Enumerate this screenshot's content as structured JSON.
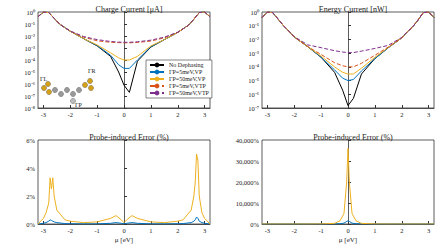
{
  "chart_data": [
    {
      "type": "line",
      "title": "Charge Current [μA]",
      "log": "y",
      "grid": false,
      "legend": "lower right",
      "annotations": [
        "ΓL",
        "ΓR",
        "ΓP"
      ],
      "xlim": [
        -3.2,
        3.2
      ],
      "xticks": [
        -3,
        -2,
        -1,
        0,
        1,
        2,
        3
      ],
      "ylim": [
        1e-08,
        1
      ],
      "yticks": [
        {
          "value": 1e-08,
          "label": "10⁻⁸"
        },
        {
          "value": 1e-07,
          "label": "10⁻⁷"
        },
        {
          "value": 1e-06,
          "label": "10⁻⁶"
        },
        {
          "value": 1e-05,
          "label": "10⁻⁵"
        },
        {
          "value": 0.0001,
          "label": "10⁻⁴"
        },
        {
          "value": 0.001,
          "label": "10⁻³"
        },
        {
          "value": 0.01,
          "label": "10⁻²"
        },
        {
          "value": 0.1,
          "label": "10⁻¹"
        },
        {
          "value": 1,
          "label": "10⁰"
        }
      ],
      "x": [
        -3.2,
        -3.0,
        -2.8,
        -2.6,
        -2.4,
        -2.2,
        -2.0,
        -1.5,
        -1.0,
        -0.5,
        -0.2,
        0,
        0.2,
        0.5,
        1.0,
        1.5,
        2.0,
        2.2,
        2.4,
        2.6,
        2.8,
        3.0,
        3.2
      ],
      "series": [
        {
          "name": "No Dephasing",
          "color": "#000000",
          "line_style": "solid",
          "values": [
            0.4,
            1.0,
            0.9,
            0.3,
            0.1,
            0.05,
            0.025,
            0.006,
            0.0015,
            0.0002,
            1e-05,
            8e-07,
            2e-07,
            8e-05,
            0.0012,
            0.005,
            0.02,
            0.04,
            0.08,
            0.25,
            0.9,
            1.0,
            0.4
          ]
        },
        {
          "name": "ΓP=5meV,VP",
          "color": "#0072BD",
          "line_style": "solid",
          "values": [
            0.4,
            1.0,
            0.9,
            0.3,
            0.1,
            0.05,
            0.025,
            0.006,
            0.0016,
            0.00025,
            4e-05,
            2e-05,
            2e-05,
            0.0001,
            0.0013,
            0.005,
            0.02,
            0.04,
            0.08,
            0.25,
            0.9,
            1.0,
            0.4
          ]
        },
        {
          "name": "ΓP=50meV,VP",
          "color": "#EDB120",
          "line_style": "solid",
          "values": [
            0.4,
            1.0,
            0.9,
            0.3,
            0.1,
            0.05,
            0.025,
            0.006,
            0.0018,
            0.0004,
            0.00015,
            0.0001,
            0.0001,
            0.0002,
            0.0015,
            0.005,
            0.02,
            0.04,
            0.08,
            0.25,
            0.9,
            1.0,
            0.4
          ]
        },
        {
          "name": "ΓP=5meV,VTP",
          "color": "#D95319",
          "line_style": "dashed",
          "values": [
            0.4,
            1.0,
            0.9,
            0.3,
            0.1,
            0.05,
            0.025,
            0.008,
            0.004,
            0.003,
            0.0028,
            0.0027,
            0.0027,
            0.0029,
            0.0038,
            0.007,
            0.02,
            0.04,
            0.08,
            0.25,
            0.9,
            1.0,
            0.4
          ]
        },
        {
          "name": "ΓP=50meV,VTP",
          "color": "#7E2F8E",
          "line_style": "dashed",
          "values": [
            0.4,
            1.0,
            0.9,
            0.3,
            0.1,
            0.05,
            0.026,
            0.009,
            0.005,
            0.0035,
            0.0031,
            0.003,
            0.003,
            0.0033,
            0.0045,
            0.008,
            0.021,
            0.04,
            0.08,
            0.25,
            0.9,
            1.0,
            0.4
          ]
        }
      ]
    },
    {
      "type": "line",
      "title": "Energy Current [nW]",
      "log": "y",
      "grid": false,
      "xlim": [
        -3.2,
        3.2
      ],
      "xticks": [
        -3,
        -2,
        -1,
        0,
        1,
        2,
        3
      ],
      "ylim": [
        1e-07,
        1
      ],
      "yticks": [
        {
          "value": 1e-07,
          "label": "10⁻⁷"
        },
        {
          "value": 1e-06,
          "label": "10⁻⁶"
        },
        {
          "value": 1e-05,
          "label": "10⁻⁵"
        },
        {
          "value": 0.0001,
          "label": "10⁻⁴"
        },
        {
          "value": 0.001,
          "label": "10⁻³"
        },
        {
          "value": 0.01,
          "label": "10⁻²"
        },
        {
          "value": 0.1,
          "label": "10⁻¹"
        },
        {
          "value": 1,
          "label": "10⁰"
        }
      ],
      "x": [
        -3.2,
        -3.0,
        -2.8,
        -2.6,
        -2.4,
        -2.2,
        -2.0,
        -1.5,
        -1.0,
        -0.5,
        -0.2,
        0,
        0.2,
        0.5,
        1.0,
        1.5,
        2.0,
        2.2,
        2.4,
        2.6,
        2.8,
        3.0,
        3.2
      ],
      "series": [
        {
          "name": "No Dephasing",
          "color": "#000000",
          "line_style": "solid",
          "values": [
            0.4,
            1.0,
            0.9,
            0.3,
            0.1,
            0.04,
            0.015,
            0.003,
            0.0005,
            4e-05,
            2e-06,
            1.5e-07,
            5e-07,
            3e-05,
            0.0004,
            0.0025,
            0.013,
            0.035,
            0.08,
            0.25,
            0.9,
            1.0,
            0.4
          ]
        },
        {
          "name": "ΓP=5meV,VP",
          "color": "#0072BD",
          "line_style": "solid",
          "values": [
            0.4,
            1.0,
            0.9,
            0.3,
            0.1,
            0.04,
            0.015,
            0.003,
            0.0005,
            6e-05,
            1.5e-05,
            1e-05,
            1.2e-05,
            5e-05,
            0.0004,
            0.0025,
            0.013,
            0.035,
            0.08,
            0.25,
            0.9,
            1.0,
            0.4
          ]
        },
        {
          "name": "ΓP=50meV,VP",
          "color": "#EDB120",
          "line_style": "solid",
          "values": [
            0.4,
            1.0,
            0.9,
            0.3,
            0.1,
            0.04,
            0.015,
            0.003,
            0.0006,
            0.0001,
            4e-05,
            3e-05,
            3e-05,
            8e-05,
            0.0005,
            0.0026,
            0.013,
            0.035,
            0.08,
            0.25,
            0.9,
            1.0,
            0.4
          ]
        },
        {
          "name": "ΓP=5meV,VTP",
          "color": "#D95319",
          "line_style": "dashed",
          "values": [
            0.4,
            1.0,
            0.9,
            0.3,
            0.1,
            0.04,
            0.015,
            0.003,
            0.0008,
            0.0002,
            0.00012,
            0.0001,
            0.0001,
            0.00018,
            0.0007,
            0.0028,
            0.013,
            0.035,
            0.08,
            0.25,
            0.9,
            1.0,
            0.4
          ]
        },
        {
          "name": "ΓP=50meV,VTP",
          "color": "#7E2F8E",
          "line_style": "dashed",
          "values": [
            0.4,
            1.0,
            0.9,
            0.3,
            0.1,
            0.04,
            0.016,
            0.004,
            0.0025,
            0.0015,
            0.0012,
            0.0011,
            0.0011,
            0.0014,
            0.0022,
            0.0037,
            0.014,
            0.035,
            0.08,
            0.25,
            0.9,
            1.0,
            0.4
          ]
        }
      ]
    },
    {
      "type": "line",
      "title": "Probe-induced Error (%)",
      "xlabel": "μ [eV]",
      "grid": false,
      "xlim": [
        -3.2,
        3.2
      ],
      "xticks": [
        -3,
        -2,
        -1,
        0,
        1,
        2,
        3
      ],
      "ylim": [
        0,
        6
      ],
      "yticks": [
        {
          "value": 0,
          "label": "0%"
        },
        {
          "value": 2,
          "label": "2%"
        },
        {
          "value": 4,
          "label": "4%"
        },
        {
          "value": 6,
          "label": "6%"
        }
      ],
      "x": [
        -3.2,
        -3.0,
        -2.9,
        -2.8,
        -2.75,
        -2.7,
        -2.65,
        -2.6,
        -2.5,
        -2.2,
        -2.0,
        -1.5,
        -1.0,
        -0.5,
        -0.3,
        -0.1,
        0,
        0.1,
        0.3,
        0.5,
        1.0,
        1.5,
        2.0,
        2.2,
        2.5,
        2.6,
        2.65,
        2.7,
        2.75,
        2.8,
        2.9,
        3.0,
        3.2
      ],
      "series": [
        {
          "name": "ΓP=5meV,VP",
          "color": "#0072BD",
          "line_style": "solid",
          "values": [
            0,
            0.05,
            0.1,
            0.2,
            0.3,
            0.25,
            0.2,
            0.15,
            0.1,
            0.03,
            0.02,
            0.01,
            0.01,
            0.05,
            0.1,
            0.05,
            0.02,
            0.05,
            0.1,
            0.05,
            0.01,
            0.01,
            0.02,
            0.03,
            0.1,
            0.2,
            0.3,
            0.5,
            0.4,
            0.2,
            0.1,
            0.05,
            0
          ]
        },
        {
          "name": "ΓP=50meV,VP",
          "color": "#EDB120",
          "line_style": "solid",
          "values": [
            0,
            0.4,
            0.8,
            1.5,
            3.3,
            2.5,
            3.3,
            2.0,
            1.0,
            0.3,
            0.2,
            0.1,
            0.15,
            0.4,
            0.6,
            0.3,
            0.1,
            0.3,
            0.6,
            0.4,
            0.15,
            0.1,
            0.2,
            0.3,
            1.0,
            2.0,
            3.0,
            5.0,
            4.5,
            2.0,
            0.8,
            0.4,
            0
          ]
        }
      ]
    },
    {
      "type": "line",
      "title": "Probe-induced Error (%)",
      "xlabel": "μ [eV]",
      "grid": false,
      "xlim": [
        -3.2,
        3.2
      ],
      "xticks": [
        -3,
        -2,
        -1,
        0,
        1,
        2,
        3
      ],
      "ylim": [
        0,
        40000
      ],
      "yticks": [
        {
          "value": 0,
          "label": "0%"
        },
        {
          "value": 10000,
          "label": "10,000%"
        },
        {
          "value": 20000,
          "label": "20,000%"
        },
        {
          "value": 30000,
          "label": "30,000%"
        },
        {
          "value": 40000,
          "label": "40,000%"
        }
      ],
      "x": [
        -3.2,
        -3.0,
        -2.8,
        -2.5,
        -2.0,
        -1.5,
        -1.0,
        -0.5,
        -0.3,
        -0.15,
        -0.05,
        0,
        0.05,
        0.15,
        0.3,
        0.5,
        1.0,
        1.5,
        2.0,
        2.5,
        2.8,
        3.0,
        3.2
      ],
      "series": [
        {
          "name": "ΓP=5meV,VP",
          "color": "#0072BD",
          "line_style": "solid",
          "values": [
            0,
            0,
            0,
            0,
            0,
            0,
            10,
            50,
            150,
            400,
            1200,
            1500,
            1200,
            400,
            150,
            50,
            10,
            0,
            0,
            0,
            0,
            0,
            0
          ]
        },
        {
          "name": "ΓP=50meV,VP",
          "color": "#EDB120",
          "line_style": "solid",
          "values": [
            0,
            0,
            0,
            0,
            0,
            0,
            50,
            300,
            1500,
            5000,
            20000,
            36000,
            20000,
            5000,
            1500,
            300,
            50,
            0,
            0,
            0,
            0,
            0,
            0
          ]
        }
      ]
    }
  ]
}
